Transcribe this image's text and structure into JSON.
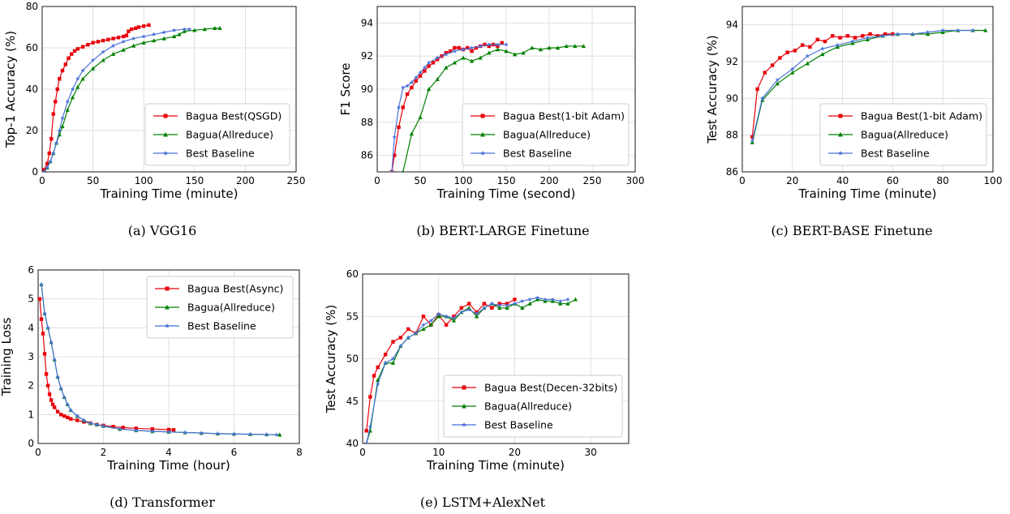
{
  "colors": {
    "bagua_best": "#e8000b",
    "bagua_allreduce": "#008000",
    "baseline": "#4a72d8"
  },
  "chart_data": [
    {
      "type": "line",
      "caption": "(a) VGG16",
      "xlabel": "Training Time (minute)",
      "ylabel": "Top-1 Accuracy (%)",
      "xlim": [
        0,
        250
      ],
      "ylim": [
        0,
        80
      ],
      "xticks": [
        0,
        50,
        100,
        150,
        200,
        250
      ],
      "yticks": [
        0,
        20,
        40,
        60,
        80
      ],
      "grid": true,
      "legend_position": "lower-right",
      "series": [
        {
          "name": "Bagua Best(QSGD)",
          "color": "#e8000b",
          "marker": "square",
          "x": [
            2,
            5,
            7,
            9,
            11,
            13,
            15,
            17,
            20,
            23,
            26,
            29,
            32,
            35,
            40,
            45,
            50,
            55,
            60,
            65,
            70,
            75,
            80,
            83,
            85,
            88,
            92,
            95,
            100,
            105
          ],
          "y": [
            1,
            4,
            9,
            16,
            28,
            34,
            40,
            45,
            49,
            52,
            55,
            57,
            58.5,
            59.5,
            60.5,
            61.5,
            62.5,
            63,
            63.5,
            64,
            64.5,
            65,
            65.5,
            66,
            68,
            69,
            69.5,
            70,
            70.5,
            71
          ]
        },
        {
          "name": "Bagua(Allreduce)",
          "color": "#008000",
          "marker": "triangle",
          "x": [
            2,
            5,
            8,
            11,
            14,
            17,
            20,
            25,
            30,
            35,
            40,
            50,
            60,
            70,
            80,
            90,
            100,
            110,
            120,
            130,
            135,
            140,
            150,
            160,
            170,
            175
          ],
          "y": [
            0,
            2,
            5,
            9,
            14,
            18,
            22,
            30,
            36,
            41,
            45,
            50,
            54,
            57,
            59,
            61,
            62.5,
            63.5,
            64.5,
            65.5,
            66.5,
            68,
            68.5,
            69,
            69.5,
            69.5
          ]
        },
        {
          "name": "Best Baseline",
          "color": "#4a72d8",
          "marker": "star",
          "x": [
            2,
            5,
            8,
            11,
            14,
            17,
            20,
            25,
            30,
            35,
            40,
            50,
            60,
            70,
            80,
            90,
            100,
            110,
            120,
            130,
            140,
            145
          ],
          "y": [
            0,
            2,
            5,
            9,
            14,
            20,
            26,
            34,
            40,
            45,
            49,
            54,
            58,
            61,
            63,
            64.5,
            65.5,
            66.5,
            67.5,
            68.5,
            69,
            69
          ]
        }
      ]
    },
    {
      "type": "line",
      "caption": "(b) BERT-LARGE Finetune",
      "xlabel": "Training Time (second)",
      "ylabel": "F1 Score",
      "xlim": [
        0,
        300
      ],
      "ylim": [
        85,
        95
      ],
      "xticks": [
        0,
        50,
        100,
        150,
        200,
        250,
        300
      ],
      "yticks": [
        86,
        88,
        90,
        92,
        94
      ],
      "grid": true,
      "legend_position": "lower-right",
      "series": [
        {
          "name": "Bagua Best(1-bit Adam)",
          "color": "#e8000b",
          "marker": "square",
          "x": [
            17,
            20,
            25,
            30,
            35,
            40,
            45,
            50,
            55,
            60,
            65,
            70,
            75,
            80,
            85,
            90,
            95,
            100,
            105,
            110,
            115,
            120,
            125,
            130,
            135,
            140,
            145
          ],
          "y": [
            85,
            86,
            87.7,
            88.9,
            89.7,
            90.1,
            90.5,
            90.8,
            91.1,
            91.4,
            91.6,
            91.8,
            92,
            92.2,
            92.3,
            92.5,
            92.5,
            92.4,
            92.5,
            92.3,
            92.5,
            92.6,
            92.7,
            92.6,
            92.7,
            92.6,
            92.8
          ]
        },
        {
          "name": "Bagua(Allreduce)",
          "color": "#008000",
          "marker": "triangle",
          "x": [
            30,
            40,
            50,
            60,
            70,
            80,
            90,
            100,
            110,
            120,
            130,
            140,
            150,
            160,
            170,
            180,
            190,
            200,
            210,
            220,
            230,
            240
          ],
          "y": [
            85,
            87.3,
            88.3,
            90,
            90.6,
            91.3,
            91.6,
            91.9,
            91.7,
            91.9,
            92.2,
            92.4,
            92.3,
            92.1,
            92.2,
            92.5,
            92.4,
            92.5,
            92.5,
            92.6,
            92.6,
            92.6
          ]
        },
        {
          "name": "Best Baseline",
          "color": "#4a72d8",
          "marker": "star",
          "x": [
            17,
            20,
            25,
            30,
            35,
            40,
            45,
            50,
            55,
            60,
            70,
            80,
            90,
            100,
            110,
            120,
            130,
            140,
            150
          ],
          "y": [
            85,
            87.1,
            88.9,
            90.1,
            90.2,
            90.4,
            90.7,
            91,
            91.3,
            91.6,
            91.9,
            92.1,
            92.3,
            92.4,
            92.5,
            92.6,
            92.7,
            92.7,
            92.7
          ]
        }
      ]
    },
    {
      "type": "line",
      "caption": "(c) BERT-BASE Finetune",
      "xlabel": "Training Time (minute)",
      "ylabel": "Test Accuracy (%)",
      "xlim": [
        0,
        100
      ],
      "ylim": [
        86,
        95
      ],
      "xticks": [
        0,
        20,
        40,
        60,
        80,
        100
      ],
      "yticks": [
        86,
        88,
        90,
        92,
        94
      ],
      "grid": true,
      "legend_position": "lower-right",
      "series": [
        {
          "name": "Bagua Best(1-bit Adam)",
          "color": "#e8000b",
          "marker": "square",
          "x": [
            4,
            6,
            9,
            12,
            15,
            18,
            21,
            24,
            27,
            30,
            33,
            36,
            39,
            42,
            45,
            48,
            51,
            54,
            57,
            60
          ],
          "y": [
            87.9,
            90.5,
            91.4,
            91.8,
            92.2,
            92.5,
            92.6,
            92.9,
            92.8,
            93.2,
            93.1,
            93.4,
            93.3,
            93.4,
            93.3,
            93.4,
            93.5,
            93.4,
            93.5,
            93.5
          ]
        },
        {
          "name": "Bagua(Allreduce)",
          "color": "#008000",
          "marker": "triangle",
          "x": [
            4,
            8,
            14,
            20,
            26,
            32,
            38,
            44,
            50,
            56,
            62,
            68,
            74,
            80,
            86,
            92,
            97
          ],
          "y": [
            87.6,
            89.9,
            90.8,
            91.4,
            91.9,
            92.4,
            92.8,
            93,
            93.2,
            93.4,
            93.5,
            93.5,
            93.5,
            93.6,
            93.7,
            93.7,
            93.7
          ]
        },
        {
          "name": "Best Baseline",
          "color": "#4a72d8",
          "marker": "star",
          "x": [
            4,
            8,
            14,
            20,
            26,
            32,
            38,
            44,
            50,
            56,
            62,
            68,
            74,
            80,
            86,
            92
          ],
          "y": [
            87.7,
            90,
            91,
            91.6,
            92.3,
            92.7,
            92.9,
            93.1,
            93.3,
            93.4,
            93.5,
            93.5,
            93.6,
            93.7,
            93.7,
            93.7
          ]
        }
      ]
    },
    {
      "type": "line",
      "caption": "(d) Transformer",
      "xlabel": "Training Time (hour)",
      "ylabel": "Training Loss",
      "xlim": [
        0,
        8
      ],
      "ylim": [
        0,
        6
      ],
      "xticks": [
        0,
        2,
        4,
        6,
        8
      ],
      "yticks": [
        0,
        1,
        2,
        3,
        4,
        5,
        6
      ],
      "grid": true,
      "legend_position": "upper-right",
      "series": [
        {
          "name": "Bagua Best(Async)",
          "color": "#e8000b",
          "marker": "square",
          "x": [
            0.05,
            0.1,
            0.15,
            0.2,
            0.25,
            0.3,
            0.35,
            0.4,
            0.45,
            0.5,
            0.6,
            0.7,
            0.8,
            0.9,
            1,
            1.2,
            1.4,
            1.6,
            1.8,
            2,
            2.3,
            2.6,
            3,
            3.5,
            4,
            4.15
          ],
          "y": [
            5,
            4.3,
            3.8,
            3.1,
            2.4,
            2,
            1.7,
            1.5,
            1.35,
            1.25,
            1.1,
            1,
            0.95,
            0.9,
            0.85,
            0.8,
            0.75,
            0.7,
            0.65,
            0.62,
            0.58,
            0.55,
            0.52,
            0.5,
            0.48,
            0.47
          ]
        },
        {
          "name": "Bagua(Allreduce)",
          "color": "#008000",
          "marker": "triangle",
          "x": [
            0.1,
            0.2,
            0.3,
            0.4,
            0.5,
            0.6,
            0.7,
            0.8,
            0.9,
            1,
            1.2,
            1.4,
            1.6,
            1.8,
            2,
            2.5,
            3,
            3.5,
            4,
            4.5,
            5,
            5.5,
            6,
            6.5,
            7,
            7.4
          ],
          "y": [
            5.5,
            4.5,
            4,
            3.5,
            2.9,
            2.3,
            1.9,
            1.6,
            1.35,
            1.15,
            0.95,
            0.8,
            0.7,
            0.65,
            0.6,
            0.5,
            0.45,
            0.42,
            0.4,
            0.38,
            0.36,
            0.34,
            0.33,
            0.32,
            0.31,
            0.3
          ]
        },
        {
          "name": "Best Baseline",
          "color": "#4a72d8",
          "marker": "star",
          "x": [
            0.1,
            0.2,
            0.3,
            0.4,
            0.5,
            0.6,
            0.7,
            0.8,
            0.9,
            1,
            1.2,
            1.4,
            1.6,
            1.8,
            2,
            2.5,
            3,
            3.5,
            4,
            4.5,
            5,
            5.5,
            6,
            6.5,
            7,
            7.3
          ],
          "y": [
            5.5,
            4.5,
            4,
            3.5,
            2.9,
            2.3,
            1.9,
            1.6,
            1.35,
            1.15,
            0.95,
            0.8,
            0.7,
            0.65,
            0.6,
            0.5,
            0.45,
            0.42,
            0.4,
            0.38,
            0.36,
            0.34,
            0.33,
            0.32,
            0.31,
            0.3
          ]
        }
      ]
    },
    {
      "type": "line",
      "caption": "(e) LSTM+AlexNet",
      "xlabel": "Training Time (minute)",
      "ylabel": "Test Accuracy (%)",
      "xlim": [
        0,
        35
      ],
      "ylim": [
        40,
        60
      ],
      "xticks": [
        0,
        10,
        20,
        30
      ],
      "yticks": [
        40,
        45,
        50,
        55,
        60
      ],
      "grid": true,
      "legend_position": "lower-right",
      "series": [
        {
          "name": "Bagua Best(Decen-32bits)",
          "color": "#e8000b",
          "marker": "square",
          "x": [
            0.5,
            1,
            1.5,
            2,
            3,
            4,
            5,
            6,
            7,
            8,
            9,
            10,
            11,
            12,
            13,
            14,
            15,
            16,
            17,
            18,
            19,
            20
          ],
          "y": [
            41.5,
            45.5,
            48,
            49,
            50.5,
            52,
            52.5,
            53.5,
            53,
            55,
            54,
            55.2,
            54,
            55,
            56,
            56.5,
            55.5,
            56.5,
            56,
            56.5,
            56.5,
            57
          ]
        },
        {
          "name": "Bagua(Allreduce)",
          "color": "#008000",
          "marker": "triangle",
          "x": [
            0.5,
            1,
            2,
            3,
            4,
            5,
            6,
            7,
            8,
            9,
            10,
            11,
            12,
            13,
            14,
            15,
            16,
            17,
            18,
            19,
            20,
            21,
            22,
            23,
            24,
            25,
            26,
            27,
            28
          ],
          "y": [
            40,
            41.5,
            47.5,
            49.5,
            49.5,
            51.5,
            52.5,
            53,
            53.5,
            54,
            55,
            55,
            54.5,
            55.5,
            56,
            55,
            56,
            56.5,
            56,
            56,
            56.5,
            56,
            56.5,
            57,
            56.8,
            56.8,
            56.5,
            56.5,
            57
          ]
        },
        {
          "name": "Best Baseline",
          "color": "#4a72d8",
          "marker": "star",
          "x": [
            0.5,
            1,
            2,
            3,
            4,
            5,
            6,
            7,
            8,
            9,
            10,
            11,
            12,
            13,
            14,
            15,
            16,
            17,
            18,
            19,
            20,
            21,
            22,
            23,
            24,
            25,
            26,
            27
          ],
          "y": [
            40,
            42,
            47,
            49.5,
            50,
            51.5,
            52.5,
            53,
            54,
            54.5,
            55.3,
            55,
            54.8,
            55.5,
            55.8,
            55.3,
            56,
            56.5,
            56.3,
            56.3,
            56.5,
            56.8,
            57,
            57.2,
            57,
            57,
            56.8,
            57
          ]
        }
      ]
    }
  ]
}
